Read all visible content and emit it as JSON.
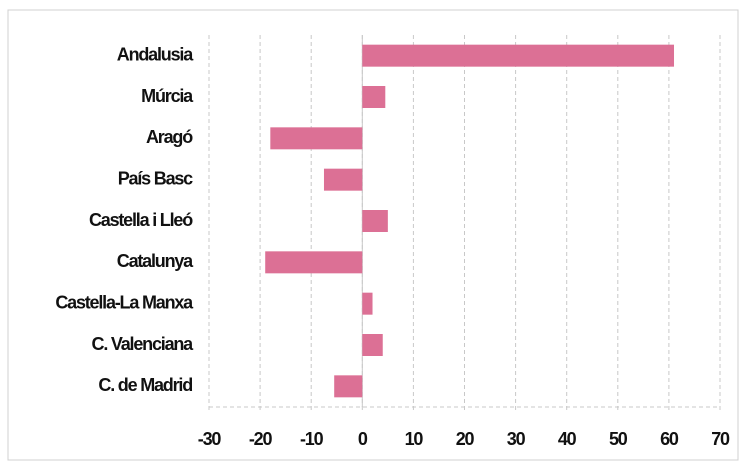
{
  "chart_data": {
    "type": "hbar",
    "categories": [
      "Andalusia",
      "Múrcia",
      "Aragó",
      "País Basc",
      "Castella i Lleó",
      "Catalunya",
      "Castella-La Manxa",
      "C. Valenciana",
      "C. de Madrid"
    ],
    "values": [
      61,
      4.5,
      -18,
      -7.5,
      5,
      -19,
      2,
      4,
      -5.5
    ],
    "color": "#dc7095",
    "xlim": [
      -30,
      70
    ],
    "xticks": [
      -30,
      -20,
      -10,
      0,
      10,
      20,
      30,
      40,
      50,
      60,
      70
    ],
    "grid": true
  }
}
